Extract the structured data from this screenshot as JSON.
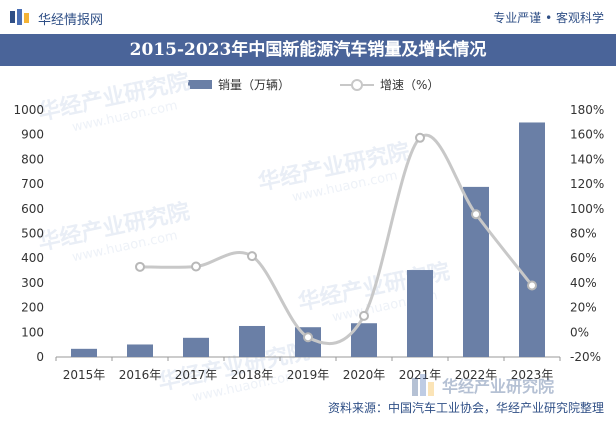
{
  "header": {
    "brand": "华经情报网",
    "tagline": "专业严谨 • 客观科学"
  },
  "title": "2015-2023年中国新能源汽车销量及增长情况",
  "legend": {
    "bar_label": "销量（万辆）",
    "line_label": "增速（%）"
  },
  "source": "资料来源：中国汽车工业协会，华经产业研究院整理",
  "watermark": {
    "text": "华经产业研究院",
    "url": "www.huaon.com"
  },
  "colors": {
    "bar": "#6a7fa6",
    "line": "#c8c8c8",
    "title_bg": "#4a6499",
    "brand": "#2f4f86"
  },
  "chart_data": {
    "type": "bar",
    "categories": [
      "2015年",
      "2016年",
      "2017年",
      "2018年",
      "2019年",
      "2020年",
      "2021年",
      "2022年",
      "2023年"
    ],
    "series": [
      {
        "name": "销量（万辆）",
        "type": "bar",
        "axis": "left",
        "values": [
          33.1,
          50.7,
          77.7,
          125.6,
          120.6,
          136.7,
          352.1,
          688.7,
          949.5
        ]
      },
      {
        "name": "增速（%）",
        "type": "line",
        "smooth": true,
        "axis": "right",
        "values": [
          null,
          53,
          53.3,
          61.7,
          -4,
          13.3,
          157.5,
          95.6,
          37.9
        ]
      }
    ],
    "y_left": {
      "ylim": [
        0,
        1000
      ],
      "ticks": [
        0,
        100,
        200,
        300,
        400,
        500,
        600,
        700,
        800,
        900,
        1000
      ]
    },
    "y_right": {
      "ylim": [
        -20,
        180
      ],
      "ticks": [
        "-20%",
        "0%",
        "20%",
        "40%",
        "60%",
        "80%",
        "100%",
        "120%",
        "140%",
        "160%",
        "180%"
      ]
    },
    "grid": false,
    "legend_position": "top-center"
  }
}
